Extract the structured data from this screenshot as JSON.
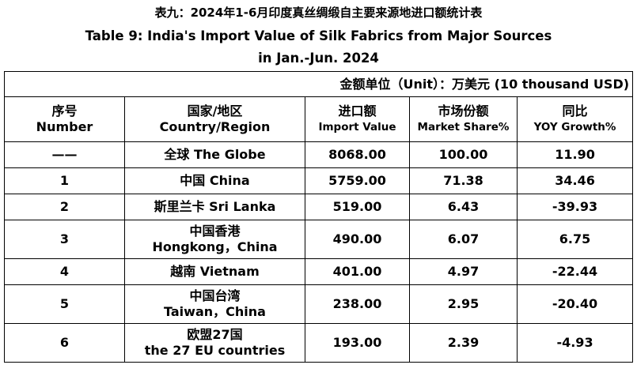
{
  "title_zh": "表九：2024年1-6月印度真丝绸缎自主要来源地进口额统计表",
  "title_en_line1": "Table 9: India's Import Value of Silk Fabrics from Major Sources",
  "title_en_line2": "in Jan.-Jun. 2024",
  "unit_note": "金额单位（Unit）：万美元 (10 thousand USD)",
  "headers": {
    "number_zh": "序号",
    "number_en": "Number",
    "country_zh": "国家/地区",
    "country_en": "Country/Region",
    "import_zh": "进口额",
    "import_en": "Import Value",
    "share_zh": "市场份额",
    "share_en": "Market Share%",
    "yoy_zh": "同比",
    "yoy_en": "YOY Growth%"
  },
  "rows": [
    {
      "number": "——",
      "country_line1": "全球 The Globe",
      "country_line2": "",
      "import": "8068.00",
      "share": "100.00",
      "yoy": "11.90"
    },
    {
      "number": "1",
      "country_line1": "中国 China",
      "country_line2": "",
      "import": "5759.00",
      "share": "71.38",
      "yoy": "34.46"
    },
    {
      "number": "2",
      "country_line1": "斯里兰卡 Sri Lanka",
      "country_line2": "",
      "import": "519.00",
      "share": "6.43",
      "yoy": "-39.93"
    },
    {
      "number": "3",
      "country_line1": "中国香港",
      "country_line2": "Hongkong，China",
      "import": "490.00",
      "share": "6.07",
      "yoy": "6.75"
    },
    {
      "number": "4",
      "country_line1": "越南 Vietnam",
      "country_line2": "",
      "import": "401.00",
      "share": "4.97",
      "yoy": "-22.44"
    },
    {
      "number": "5",
      "country_line1": "中国台湾",
      "country_line2": "Taiwan，China",
      "import": "238.00",
      "share": "2.95",
      "yoy": "-20.40"
    },
    {
      "number": "6",
      "country_line1": "欧盟27国",
      "country_line2": "the 27 EU countries",
      "import": "193.00",
      "share": "2.39",
      "yoy": "-4.93"
    }
  ]
}
